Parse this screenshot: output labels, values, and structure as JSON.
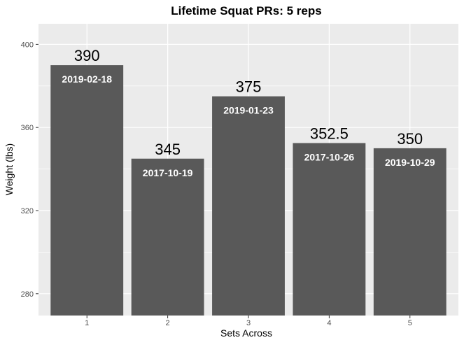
{
  "chart_data": {
    "type": "bar",
    "title": "Lifetime Squat PRs: 5 reps",
    "xlabel": "Sets Across",
    "ylabel": "Weight (lbs)",
    "categories": [
      "1",
      "2",
      "3",
      "4",
      "5"
    ],
    "values": [
      390,
      345,
      375,
      352.5,
      350
    ],
    "value_labels": [
      "390",
      "345",
      "375",
      "352.5",
      "350"
    ],
    "date_labels": [
      "2019-02-18",
      "2017-10-19",
      "2019-01-23",
      "2017-10-26",
      "2019-10-29"
    ],
    "ylim": [
      269.5,
      409.9
    ],
    "yticks": [
      280,
      320,
      360,
      400
    ],
    "ytick_labels": [
      "280",
      "320",
      "360",
      "400"
    ],
    "grid": true,
    "legend": "none",
    "colors": {
      "panel": "#ebebeb",
      "gridline": "#ffffff",
      "bar": "#595959",
      "date_text": "#ffffff",
      "tick_text": "#4d4d4d"
    }
  }
}
